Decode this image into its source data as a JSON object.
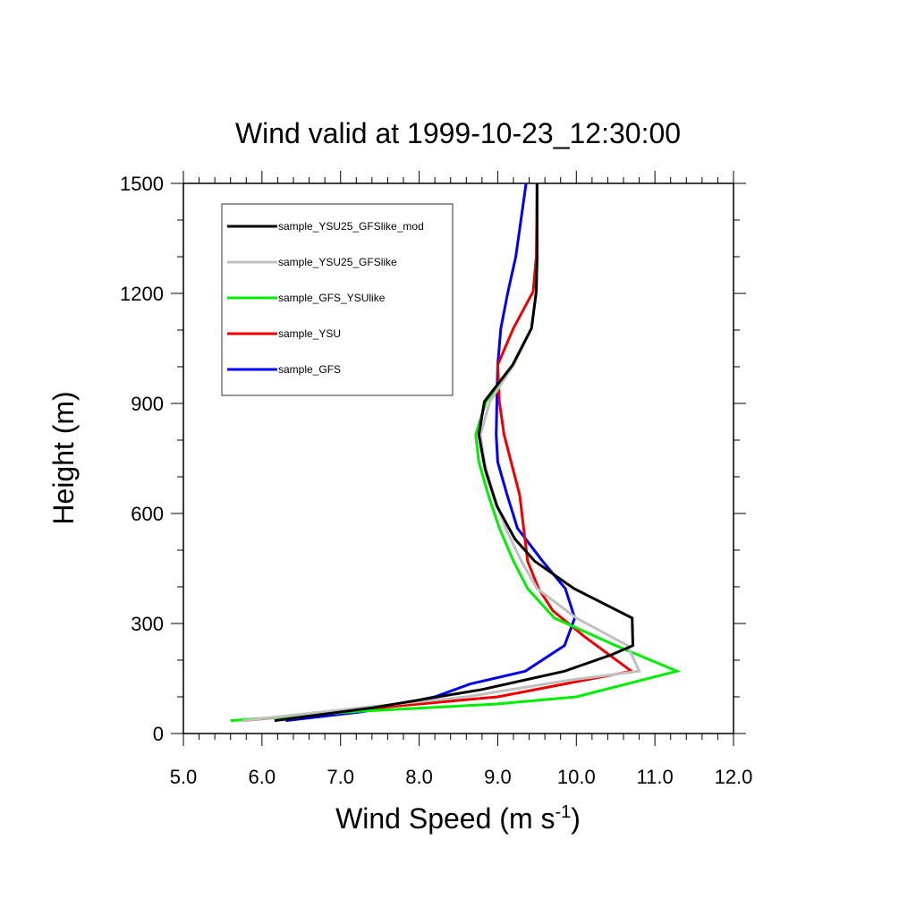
{
  "chart_data": {
    "type": "line",
    "title": "Wind valid at 1999-10-23_12:30:00",
    "xlabel": "Wind Speed (m s",
    "xlabel_sup": "-1",
    "xlabel_close": ")",
    "ylabel": "Height (m)",
    "xlim": [
      5.0,
      12.0
    ],
    "ylim": [
      0,
      1500
    ],
    "xticks": [
      "5.0",
      "6.0",
      "7.0",
      "8.0",
      "9.0",
      "10.0",
      "11.0",
      "12.0"
    ],
    "yticks": [
      "0",
      "300",
      "600",
      "900",
      "1200",
      "1500"
    ],
    "grid": false,
    "legend_position": "top-left",
    "series": [
      {
        "name": "sample_YSU25_GFSlike_mod",
        "color": "#000000",
        "points": [
          [
            6.16,
            35
          ],
          [
            7.4,
            70
          ],
          [
            8.8,
            120
          ],
          [
            9.85,
            170
          ],
          [
            10.45,
            215
          ],
          [
            10.72,
            240
          ],
          [
            10.71,
            315
          ],
          [
            9.97,
            395
          ],
          [
            9.47,
            470
          ],
          [
            9.22,
            530
          ],
          [
            8.99,
            620
          ],
          [
            8.84,
            720
          ],
          [
            8.76,
            815
          ],
          [
            8.83,
            905
          ],
          [
            9.19,
            1005
          ],
          [
            9.43,
            1105
          ],
          [
            9.49,
            1205
          ],
          [
            9.5,
            1300
          ],
          [
            9.5,
            1500
          ]
        ]
      },
      {
        "name": "sample_YSU25_GFSlike",
        "color": "#c0c0c0",
        "points": [
          [
            5.75,
            35
          ],
          [
            7.25,
            70
          ],
          [
            8.6,
            100
          ],
          [
            9.9,
            145
          ],
          [
            10.8,
            170
          ],
          [
            10.65,
            240
          ],
          [
            10.0,
            315
          ],
          [
            9.5,
            395
          ],
          [
            9.3,
            470
          ],
          [
            9.1,
            560
          ],
          [
            8.95,
            650
          ],
          [
            8.83,
            740
          ],
          [
            8.78,
            815
          ],
          [
            8.9,
            905
          ],
          [
            9.2,
            1005
          ],
          [
            9.43,
            1105
          ],
          [
            9.49,
            1205
          ],
          [
            9.5,
            1300
          ],
          [
            9.5,
            1500
          ]
        ]
      },
      {
        "name": "sample_GFS_YSUlike",
        "color": "#00ee00",
        "points": [
          [
            5.6,
            35
          ],
          [
            7.2,
            60
          ],
          [
            8.95,
            80
          ],
          [
            10.0,
            100
          ],
          [
            11.28,
            170
          ],
          [
            10.5,
            240
          ],
          [
            9.72,
            315
          ],
          [
            9.38,
            395
          ],
          [
            9.2,
            470
          ],
          [
            9.02,
            560
          ],
          [
            8.88,
            650
          ],
          [
            8.76,
            740
          ],
          [
            8.72,
            815
          ],
          [
            8.85,
            905
          ],
          [
            9.2,
            1005
          ],
          [
            9.43,
            1105
          ],
          [
            9.49,
            1205
          ],
          [
            9.5,
            1300
          ],
          [
            9.5,
            1500
          ]
        ]
      },
      {
        "name": "sample_YSU",
        "color": "#ee0000",
        "points": [
          [
            5.75,
            35
          ],
          [
            7.2,
            65
          ],
          [
            9.0,
            100
          ],
          [
            10.7,
            170
          ],
          [
            10.1,
            265
          ],
          [
            9.7,
            335
          ],
          [
            9.52,
            395
          ],
          [
            9.38,
            470
          ],
          [
            9.33,
            560
          ],
          [
            9.28,
            650
          ],
          [
            9.17,
            740
          ],
          [
            9.08,
            815
          ],
          [
            9.02,
            905
          ],
          [
            9.0,
            1005
          ],
          [
            9.2,
            1105
          ],
          [
            9.45,
            1205
          ],
          [
            9.49,
            1300
          ],
          [
            9.5,
            1500
          ]
        ]
      },
      {
        "name": "sample_GFS",
        "color": "#0000ee",
        "points": [
          [
            6.3,
            35
          ],
          [
            7.3,
            60
          ],
          [
            8.2,
            100
          ],
          [
            8.65,
            135
          ],
          [
            9.35,
            170
          ],
          [
            9.85,
            240
          ],
          [
            9.98,
            315
          ],
          [
            9.86,
            395
          ],
          [
            9.57,
            470
          ],
          [
            9.25,
            560
          ],
          [
            9.12,
            650
          ],
          [
            9.0,
            740
          ],
          [
            8.98,
            815
          ],
          [
            8.99,
            905
          ],
          [
            9.0,
            1005
          ],
          [
            9.04,
            1105
          ],
          [
            9.13,
            1205
          ],
          [
            9.23,
            1300
          ],
          [
            9.36,
            1500
          ]
        ]
      }
    ]
  }
}
